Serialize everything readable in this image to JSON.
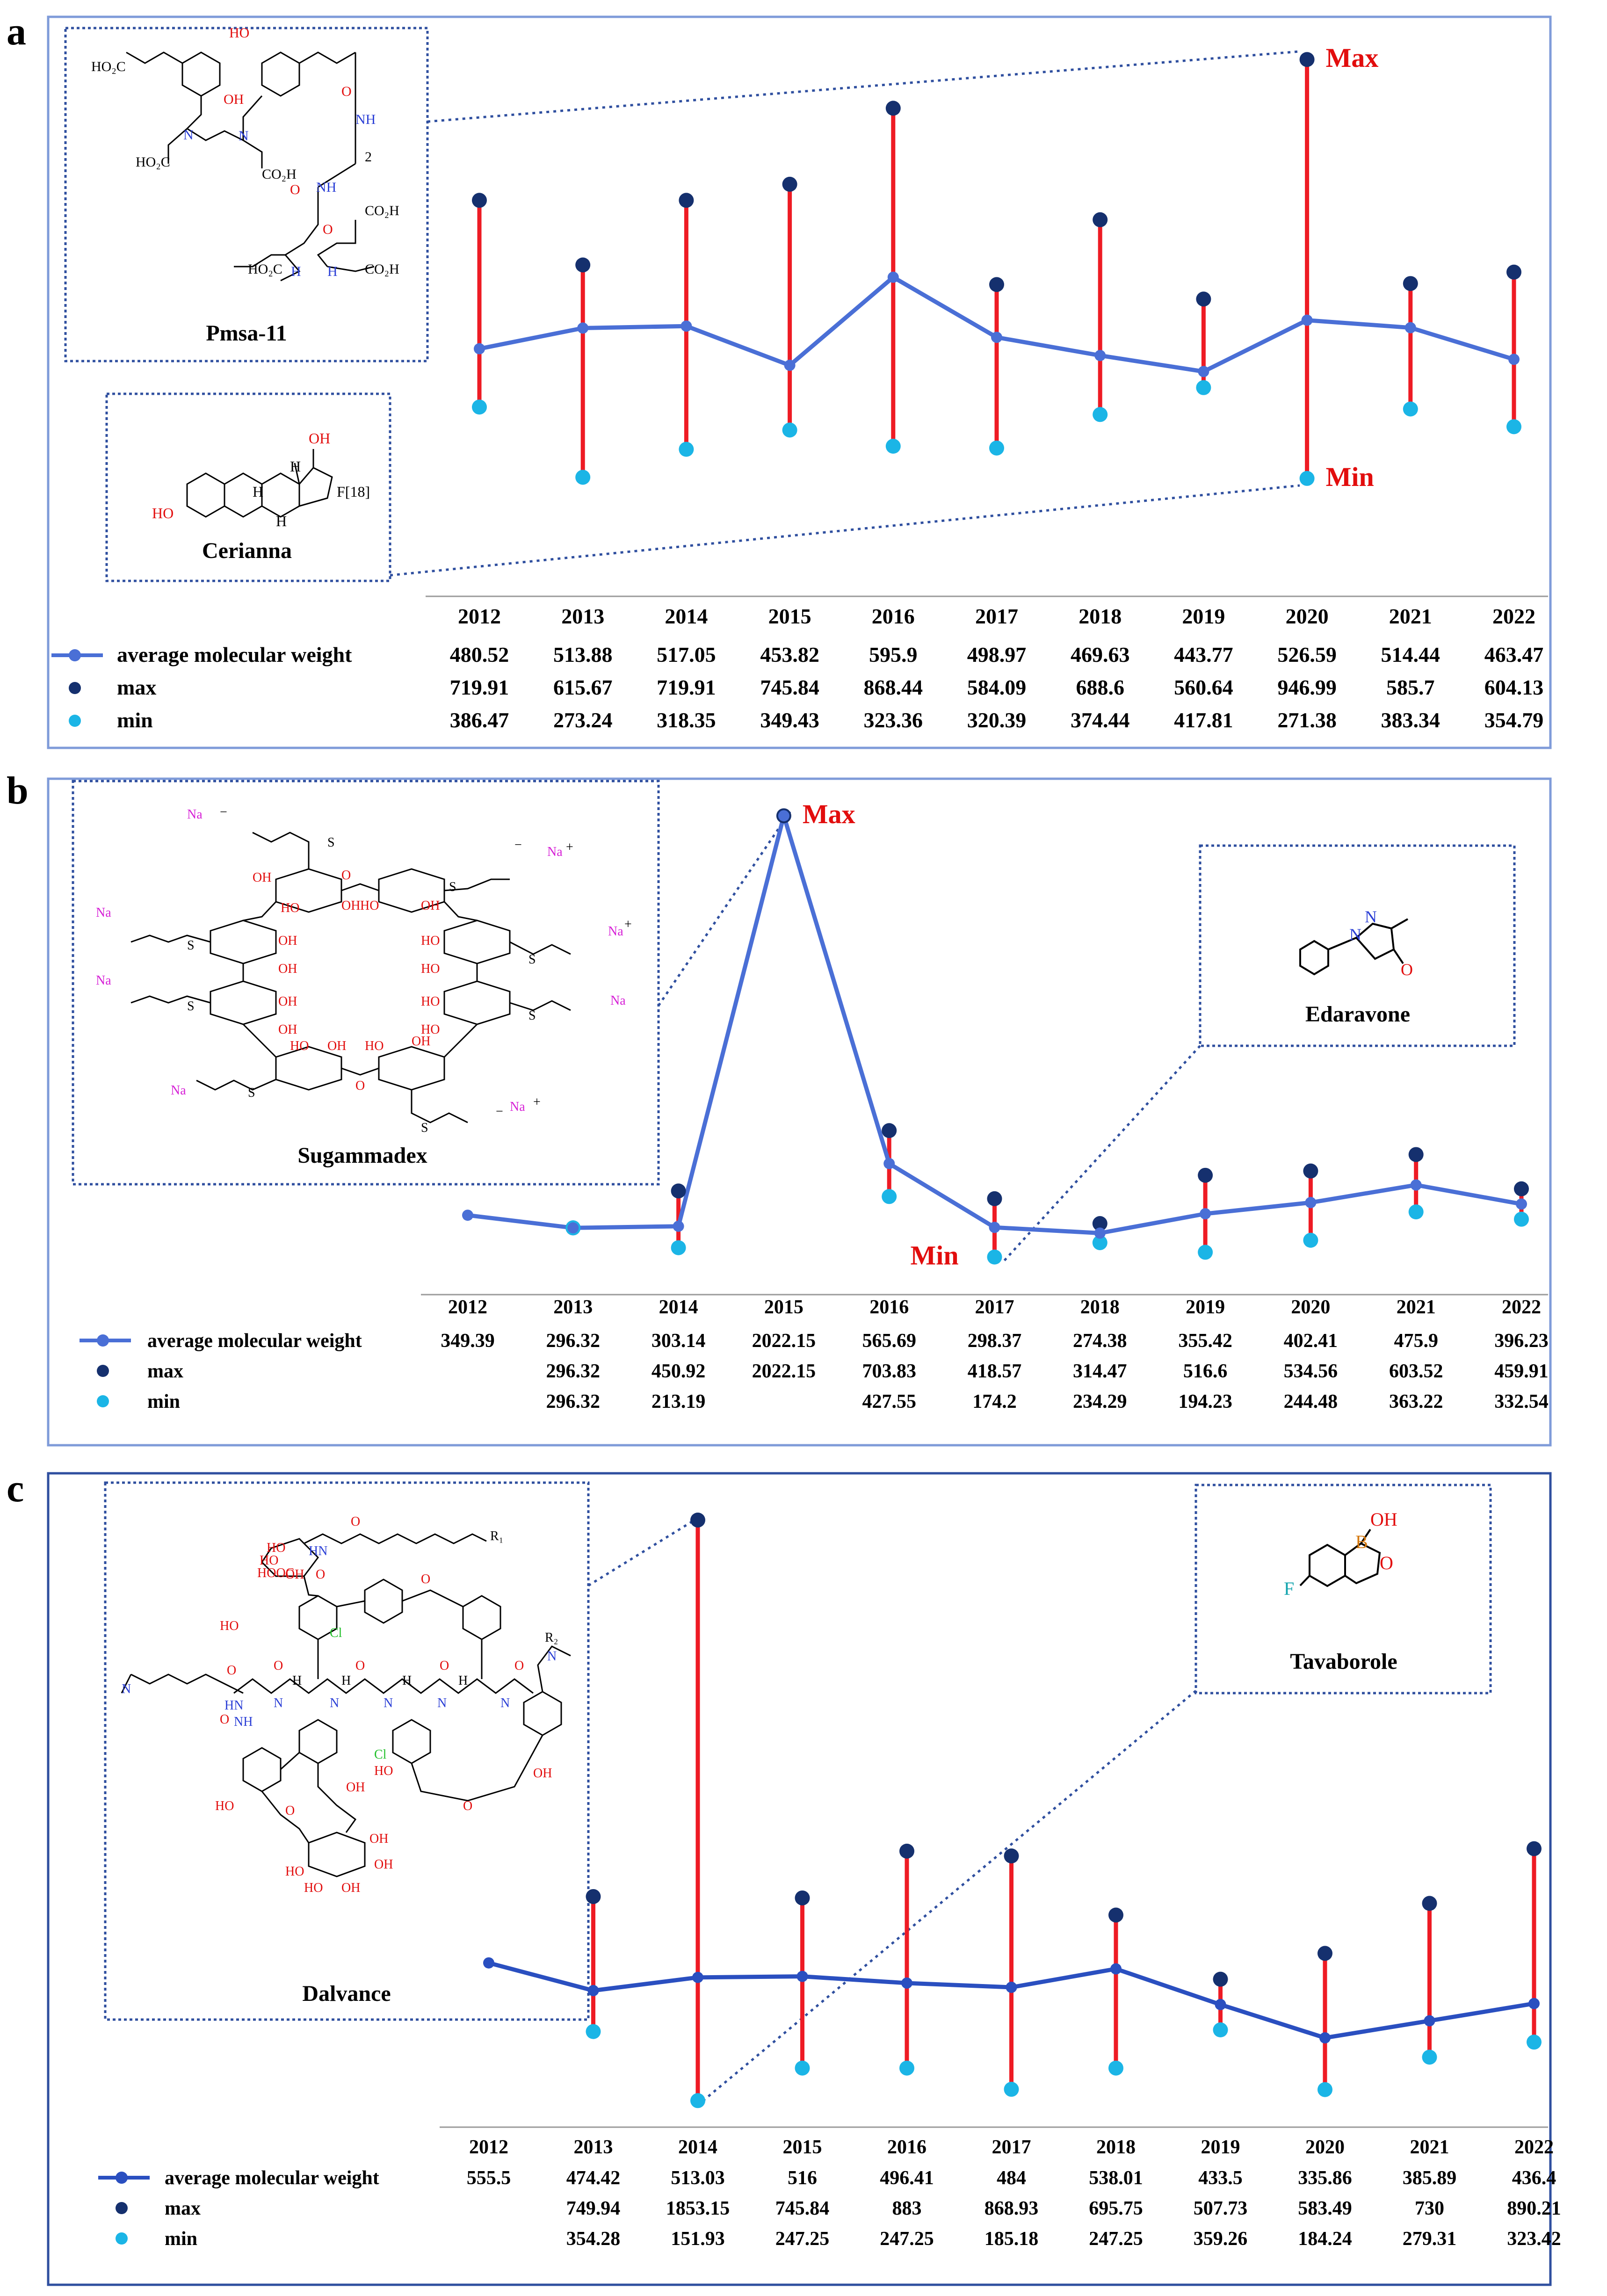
{
  "colors": {
    "frame": "#7f9bd9",
    "avg_line": "#4a6fd6",
    "max_dot": "#15306e",
    "min_dot": "#1bb5e6",
    "range_line": "#ee1b24",
    "annotation": "#e20d0d"
  },
  "icons": {
    "legend_avg": "line-with-dot-icon",
    "legend_max": "dark-dot-icon",
    "legend_min": "cyan-dot-icon"
  },
  "chart_data": [
    {
      "panel": "a",
      "type": "line",
      "categories": [
        "2012",
        "2013",
        "2014",
        "2015",
        "2016",
        "2017",
        "2018",
        "2019",
        "2020",
        "2021",
        "2022"
      ],
      "series": [
        {
          "name": "average molecular weight",
          "values": [
            480.52,
            513.88,
            517.05,
            453.82,
            595.9,
            498.97,
            469.63,
            443.77,
            526.59,
            514.44,
            463.47
          ],
          "labels": [
            "480.52",
            "513.88",
            "517.05",
            "453.82",
            "595.9",
            "498.97",
            "469.63",
            "443.77",
            "526.59",
            "514.44",
            "463.47"
          ]
        },
        {
          "name": "max",
          "values": [
            719.91,
            615.67,
            719.91,
            745.84,
            868.44,
            584.09,
            688.6,
            560.64,
            946.99,
            585.7,
            604.13
          ],
          "labels": [
            "719.91",
            "615.67",
            "719.91",
            "745.84",
            "868.44",
            "584.09",
            "688.6",
            "560.64",
            "946.99",
            "585.7",
            "604.13"
          ]
        },
        {
          "name": "min",
          "values": [
            386.47,
            273.24,
            318.35,
            349.43,
            323.36,
            320.39,
            374.44,
            417.81,
            271.38,
            383.34,
            354.79
          ],
          "labels": [
            "386.47",
            "273.24",
            "318.35",
            "349.43",
            "323.36",
            "320.39",
            "374.44",
            "417.81",
            "271.38",
            "383.34",
            "354.79"
          ]
        }
      ],
      "annotations": [
        "Max",
        "Min"
      ],
      "insets": [
        "Pmsa-11",
        "Cerianna"
      ],
      "ylim": [
        260,
        960
      ]
    },
    {
      "panel": "b",
      "type": "line",
      "categories": [
        "2012",
        "2013",
        "2014",
        "2015",
        "2016",
        "2017",
        "2018",
        "2019",
        "2020",
        "2021",
        "2022"
      ],
      "series": [
        {
          "name": "average molecular weight",
          "values": [
            349.39,
            296.32,
            303.14,
            2022.15,
            565.69,
            298.37,
            274.38,
            355.42,
            402.41,
            475.9,
            396.23
          ],
          "labels": [
            "349.39",
            "296.32",
            "303.14",
            "2022.15",
            "565.69",
            "298.37",
            "274.38",
            "355.42",
            "402.41",
            "475.9",
            "396.23"
          ]
        },
        {
          "name": "max",
          "values": [
            null,
            296.32,
            450.92,
            2022.15,
            703.83,
            418.57,
            314.47,
            516.6,
            534.56,
            603.52,
            459.91
          ],
          "labels": [
            "",
            "296.32",
            "450.92",
            "2022.15",
            "703.83",
            "418.57",
            "314.47",
            "516.6",
            "534.56",
            "603.52",
            "459.91"
          ]
        },
        {
          "name": "min",
          "values": [
            null,
            296.32,
            213.19,
            null,
            427.55,
            174.2,
            234.29,
            194.23,
            244.48,
            363.22,
            332.54
          ],
          "labels": [
            "",
            "296.32",
            "213.19",
            "",
            "427.55",
            "174.2",
            "234.29",
            "194.23",
            "244.48",
            "363.22",
            "332.54"
          ]
        }
      ],
      "annotations": [
        "Max",
        "Min"
      ],
      "insets": [
        "Sugammadex",
        "Edaravone"
      ],
      "ylim": [
        150,
        2050
      ]
    },
    {
      "panel": "c",
      "type": "line",
      "categories": [
        "2012",
        "2013",
        "2014",
        "2015",
        "2016",
        "2017",
        "2018",
        "2019",
        "2020",
        "2021",
        "2022"
      ],
      "series": [
        {
          "name": "average molecular weight",
          "values": [
            555.5,
            474.42,
            513.03,
            516,
            496.41,
            484,
            538.01,
            433.5,
            335.86,
            385.89,
            436.4
          ],
          "labels": [
            "555.5",
            "474.42",
            "513.03",
            "516",
            "496.41",
            "484",
            "538.01",
            "433.5",
            "335.86",
            "385.89",
            "436.4"
          ]
        },
        {
          "name": "max",
          "values": [
            null,
            749.94,
            1853.15,
            745.84,
            883,
            868.93,
            695.75,
            507.73,
            583.49,
            730,
            890.21
          ],
          "labels": [
            "",
            "749.94",
            "1853.15",
            "745.84",
            "883",
            "868.93",
            "695.75",
            "507.73",
            "583.49",
            "730",
            "890.21"
          ]
        },
        {
          "name": "min",
          "values": [
            null,
            354.28,
            151.93,
            247.25,
            247.25,
            185.18,
            247.25,
            359.26,
            184.24,
            279.31,
            323.42
          ],
          "labels": [
            "",
            "354.28",
            "151.93",
            "247.25",
            "247.25",
            "185.18",
            "247.25",
            "359.26",
            "184.24",
            "279.31",
            "323.42"
          ]
        }
      ],
      "insets": [
        "Dalvance",
        "Tavaborole"
      ],
      "ylim": [
        140,
        1860
      ]
    }
  ],
  "chem": {
    "pmsa": {
      "g_ho2c": "HO₂C",
      "g_oh": "OH",
      "g_ho": "HO",
      "g_n": "N",
      "g_nh": "NH",
      "g_h": "H",
      "g_co2h": "CO₂H",
      "g_2": "2",
      "g_o": "O",
      "g_hn": "HN"
    },
    "cerianna": {
      "g_oh": "OH",
      "g_ho": "HO",
      "g_f18": "F[18]",
      "g_h": "H"
    },
    "sugammadex": {
      "g_na": "Na",
      "g_plus": "+",
      "g_o": "O",
      "g_s": "S",
      "g_oh": "OH",
      "g_ho": "HO",
      "g_minus": "−"
    },
    "edaravone": {
      "g_n": "N",
      "g_o": "O"
    },
    "dalvance": {
      "g_hn": "HN",
      "g_r1": "R₁",
      "g_r2": "R₂",
      "g_hooc": "HOOC",
      "g_ho": "HO",
      "g_oh": "OH",
      "g_o": "O",
      "g_cl": "Cl",
      "g_nh": "NH",
      "g_n": "N",
      "g_h": "H"
    },
    "tavaborole": {
      "g_oh": "OH",
      "g_b": "B",
      "g_o": "O",
      "g_f": "F"
    }
  }
}
